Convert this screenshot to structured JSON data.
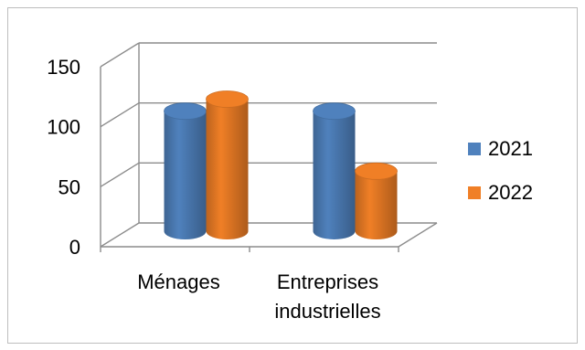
{
  "chart_data": {
    "type": "bar",
    "categories": [
      "Ménages",
      [
        "Entreprises",
        "industrielles"
      ]
    ],
    "series": [
      {
        "name": "2021",
        "values": [
          100,
          100
        ]
      },
      {
        "name": "2022",
        "values": [
          110,
          50
        ]
      }
    ],
    "title": "",
    "xlabel": "",
    "ylabel": "",
    "ylim": [
      0,
      150
    ],
    "yticks": [
      0,
      50,
      100,
      150
    ],
    "grid": true,
    "legend_position": "right",
    "colors": {
      "2021": "#4f81bd",
      "2022": "#f07f26"
    }
  }
}
